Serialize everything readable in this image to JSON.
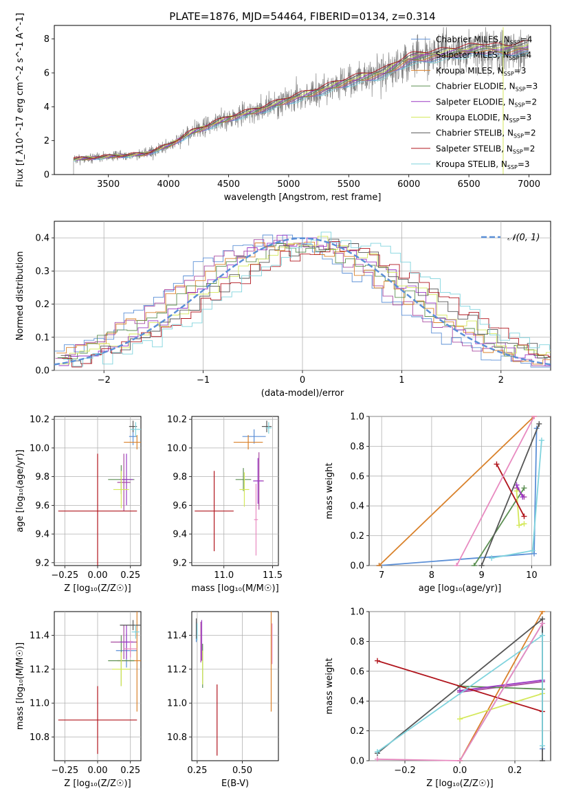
{
  "colors": {
    "chabrier_miles": "#5b8fd6",
    "salpeter_miles": "#a84aa0",
    "kroupa_miles": "#d9812a",
    "chabrier_elodie": "#5c8f52",
    "salpeter_elodie": "#9a38c4",
    "kroupa_elodie": "#d4e85a",
    "chabrier_stelib": "#555555",
    "salpeter_stelib": "#b0141c",
    "kroupa_stelib": "#7fd3dd",
    "normal": "#5b8fd6",
    "data": "#808080",
    "pink": "#e88ac0"
  },
  "chart_data": [
    {
      "id": "spectrum",
      "type": "line",
      "title": "PLATE=1876, MJD=54464, FIBERID=0134, z=0.314",
      "xlabel": "wavelength [Angstrom, rest frame]",
      "ylabel": "Flux [f_λ10^-17 erg cm^-2 s^-1 A^-1]",
      "xlim": [
        3050,
        7180
      ],
      "ylim": [
        0,
        8.8
      ],
      "xticks": [
        3500,
        4000,
        4500,
        5000,
        5500,
        6000,
        6500,
        7000
      ],
      "yticks": [
        0,
        2,
        4,
        6,
        8
      ],
      "grid": false,
      "legend": {
        "position": "top-right",
        "entries": [
          {
            "label": "Chabrier MILES, N_SSP=4",
            "text": "Chabrier MILES, N",
            "sub": "SSP",
            "tail": "=4",
            "color_key": "chabrier_miles"
          },
          {
            "label": "Salpeter MILES, N_SSP=4",
            "text": "Salpeter MILES, N",
            "sub": "SSP",
            "tail": "=4",
            "color_key": "salpeter_miles"
          },
          {
            "label": "Kroupa MILES, N_SSP=3",
            "text": "Kroupa MILES, N",
            "sub": "SSP",
            "tail": "=3",
            "color_key": "kroupa_miles"
          },
          {
            "label": "Chabrier ELODIE, N_SSP=3",
            "text": "Chabrier ELODIE, N",
            "sub": "SSP",
            "tail": "=3",
            "color_key": "chabrier_elodie"
          },
          {
            "label": "Salpeter ELODIE, N_SSP=2",
            "text": "Salpeter ELODIE, N",
            "sub": "SSP",
            "tail": "=2",
            "color_key": "salpeter_elodie"
          },
          {
            "label": "Kroupa ELODIE, N_SSP=3",
            "text": "Kroupa ELODIE, N",
            "sub": "SSP",
            "tail": "=3",
            "color_key": "kroupa_elodie"
          },
          {
            "label": "Chabrier STELIB, N_SSP=2",
            "text": "Chabrier STELIB, N",
            "sub": "SSP",
            "tail": "=2",
            "color_key": "chabrier_stelib"
          },
          {
            "label": "Salpeter STELIB, N_SSP=2",
            "text": "Salpeter STELIB, N",
            "sub": "SSP",
            "tail": "=2",
            "color_key": "salpeter_stelib"
          },
          {
            "label": "Kroupa STELIB, N_SSP=3",
            "text": "Kroupa STELIB, N",
            "sub": "SSP",
            "tail": "=3",
            "color_key": "kroupa_stelib"
          }
        ]
      },
      "continuum": {
        "x": [
          3210,
          3400,
          3600,
          3800,
          4000,
          4200,
          4500,
          4800,
          5000,
          5200,
          5500,
          5800,
          6000,
          6300,
          6600,
          6800,
          7000
        ],
        "y": [
          0.9,
          1.0,
          1.1,
          1.2,
          1.7,
          2.5,
          3.3,
          3.9,
          4.4,
          4.8,
          5.5,
          6.0,
          6.8,
          7.1,
          7.4,
          7.3,
          7.5
        ]
      },
      "data_range": [
        3210,
        7000
      ]
    },
    {
      "id": "residuals",
      "type": "histogram",
      "xlabel": "(data-model)/error",
      "ylabel": "Normed distribution",
      "xlim": [
        -2.5,
        2.5
      ],
      "ylim": [
        0,
        0.45
      ],
      "xticks": [
        -2,
        -1,
        0,
        1,
        2
      ],
      "yticks": [
        0.0,
        0.1,
        0.2,
        0.3,
        0.4
      ],
      "grid": true,
      "legend": {
        "position": "top-right",
        "label": "N(0,1)",
        "text": "𝒩(0, 1)"
      },
      "bin_width": 0.1,
      "series_keys": [
        "chabrier_miles",
        "salpeter_miles",
        "kroupa_miles",
        "chabrier_elodie",
        "salpeter_elodie",
        "kroupa_elodie",
        "chabrier_stelib",
        "salpeter_stelib",
        "kroupa_stelib"
      ]
    },
    {
      "id": "z_age",
      "type": "errorbar",
      "xlabel": "Z [log10(Z/Z☉)]",
      "ylabel": "age [log10(age/yr)]",
      "xlim": [
        -0.33,
        0.33
      ],
      "ylim": [
        9.18,
        10.22
      ],
      "xticks": [
        -0.25,
        0.0,
        0.25
      ],
      "yticks": [
        9.2,
        9.4,
        9.6,
        9.8,
        10.0,
        10.2
      ],
      "points": [
        {
          "key": "chabrier_miles",
          "x": 0.27,
          "y": 10.08,
          "xerr": 0.03,
          "yerr": 0.06
        },
        {
          "key": "salpeter_miles",
          "x": 0.2,
          "y": 9.76,
          "xerr": 0.05,
          "yerr": 0.2
        },
        {
          "key": "kroupa_miles",
          "x": 0.3,
          "y": 10.04,
          "xerr": 0.1,
          "yerr": 0.05
        },
        {
          "key": "chabrier_elodie",
          "x": 0.18,
          "y": 9.78,
          "xerr": 0.1,
          "yerr": 0.1
        },
        {
          "key": "salpeter_elodie",
          "x": 0.22,
          "y": 9.78,
          "xerr": 0.05,
          "yerr": 0.18
        },
        {
          "key": "kroupa_elodie",
          "x": 0.18,
          "y": 9.71,
          "xerr": 0.06,
          "yerr": 0.13
        },
        {
          "key": "chabrier_stelib",
          "x": 0.27,
          "y": 10.15,
          "xerr": 0.03,
          "yerr": 0.04
        },
        {
          "key": "salpeter_stelib",
          "x": 0.0,
          "y": 9.56,
          "xerr": 0.3,
          "yerr": 0.4
        },
        {
          "key": "kroupa_stelib",
          "x": 0.29,
          "y": 10.13,
          "xerr": 0.04,
          "yerr": 0.05
        }
      ]
    },
    {
      "id": "mass_age",
      "type": "errorbar",
      "xlabel": "mass [log10(M/M☉)]",
      "ylabel": "",
      "xlim": [
        10.67,
        11.56
      ],
      "ylim": [
        9.18,
        10.22
      ],
      "xticks": [
        11.0,
        11.5
      ],
      "yticks": [
        9.2,
        9.4,
        9.6,
        9.8,
        10.0,
        10.2
      ],
      "points": [
        {
          "key": "chabrier_miles",
          "x": 11.31,
          "y": 10.08,
          "xerr": 0.12,
          "yerr": 0.05
        },
        {
          "key": "salpeter_miles",
          "x": 11.36,
          "y": 9.77,
          "xerr": 0.05,
          "yerr": 0.2
        },
        {
          "key": "kroupa_miles",
          "x": 11.25,
          "y": 10.04,
          "xerr": 0.15,
          "yerr": 0.05
        },
        {
          "key": "chabrier_elodie",
          "x": 11.2,
          "y": 9.78,
          "xerr": 0.08,
          "yerr": 0.08
        },
        {
          "key": "salpeter_elodie",
          "x": 11.35,
          "y": 9.77,
          "xerr": 0.05,
          "yerr": 0.16
        },
        {
          "key": "kroupa_elodie",
          "x": 11.21,
          "y": 9.71,
          "xerr": 0.05,
          "yerr": 0.12
        },
        {
          "key": "chabrier_stelib",
          "x": 11.44,
          "y": 10.15,
          "xerr": 0.05,
          "yerr": 0.04
        },
        {
          "key": "salpeter_stelib",
          "x": 10.9,
          "y": 9.56,
          "xerr": 0.2,
          "yerr": 0.28
        },
        {
          "key": "kroupa_stelib",
          "x": 11.46,
          "y": 10.14,
          "xerr": 0.03,
          "yerr": 0.04
        },
        {
          "key": "pink",
          "x": 11.33,
          "y": 9.5,
          "xerr": 0.02,
          "yerr": 0.25
        }
      ]
    },
    {
      "id": "age_weight",
      "type": "line",
      "xlabel": "age [log10(age/yr)]",
      "ylabel": "mass weight",
      "xlim": [
        6.75,
        10.38
      ],
      "ylim": [
        0,
        1
      ],
      "xticks": [
        7,
        8,
        9,
        10
      ],
      "yticks": [
        0.0,
        0.2,
        0.4,
        0.6,
        0.8,
        1.0
      ],
      "grid": true,
      "series": [
        {
          "key": "chabrier_miles",
          "x": [
            6.95,
            10.05,
            10.1
          ],
          "y": [
            0.0,
            0.08,
            0.92
          ]
        },
        {
          "key": "salpeter_miles",
          "x": [
            9.7,
            9.85
          ],
          "y": [
            0.52,
            0.46
          ]
        },
        {
          "key": "kroupa_miles",
          "x": [
            6.95,
            10.05
          ],
          "y": [
            0.0,
            1.0
          ]
        },
        {
          "key": "chabrier_elodie",
          "x": [
            8.85,
            9.85
          ],
          "y": [
            0.0,
            0.52
          ]
        },
        {
          "key": "salpeter_elodie",
          "x": [
            9.7,
            9.82
          ],
          "y": [
            0.54,
            0.46
          ]
        },
        {
          "key": "kroupa_elodie",
          "x": [
            9.7,
            9.75,
            9.85
          ],
          "y": [
            0.5,
            0.27,
            0.28
          ]
        },
        {
          "key": "chabrier_stelib",
          "x": [
            9.0,
            10.15
          ],
          "y": [
            0.0,
            0.95
          ]
        },
        {
          "key": "salpeter_stelib",
          "x": [
            9.3,
            9.85
          ],
          "y": [
            0.68,
            0.33
          ]
        },
        {
          "key": "kroupa_stelib",
          "x": [
            9.2,
            10.02,
            10.2
          ],
          "y": [
            0.05,
            0.1,
            0.84
          ]
        },
        {
          "key": "pink",
          "x": [
            8.5,
            10.05
          ],
          "y": [
            0.0,
            1.0
          ]
        }
      ]
    },
    {
      "id": "z_mass",
      "type": "errorbar",
      "xlabel": "Z [log10(Z/Z☉)]",
      "ylabel": "mass [log10(M/M☉)]",
      "xlim": [
        -0.33,
        0.33
      ],
      "ylim": [
        10.66,
        11.54
      ],
      "xticks": [
        -0.25,
        0.0,
        0.25
      ],
      "yticks": [
        10.8,
        11.0,
        11.2,
        11.4
      ],
      "points": [
        {
          "key": "chabrier_miles",
          "x": 0.22,
          "y": 11.31,
          "xerr": 0.08,
          "yerr": 0.1
        },
        {
          "key": "salpeter_miles",
          "x": 0.2,
          "y": 11.36,
          "xerr": 0.1,
          "yerr": 0.1
        },
        {
          "key": "kroupa_miles",
          "x": 0.3,
          "y": 11.25,
          "xerr": 0.15,
          "yerr": 0.3
        },
        {
          "key": "chabrier_elodie",
          "x": 0.18,
          "y": 11.25,
          "xerr": 0.1,
          "yerr": 0.15
        },
        {
          "key": "salpeter_elodie",
          "x": 0.22,
          "y": 11.36,
          "xerr": 0.05,
          "yerr": 0.1
        },
        {
          "key": "kroupa_elodie",
          "x": 0.18,
          "y": 11.2,
          "xerr": 0.07,
          "yerr": 0.1
        },
        {
          "key": "chabrier_stelib",
          "x": 0.27,
          "y": 11.46,
          "xerr": 0.1,
          "yerr": 0.03
        },
        {
          "key": "salpeter_stelib",
          "x": 0.0,
          "y": 10.9,
          "xerr": 0.3,
          "yerr": 0.2
        },
        {
          "key": "kroupa_stelib",
          "x": 0.29,
          "y": 11.42,
          "xerr": 0.03,
          "yerr": 0.04
        },
        {
          "key": "pink",
          "x": 0.25,
          "y": 11.32,
          "xerr": 0.05,
          "yerr": 0.05
        }
      ]
    },
    {
      "id": "ebv_mass",
      "type": "errorbar",
      "xlabel": "E(B-V)",
      "ylabel": "",
      "xlim": [
        0.22,
        0.7
      ],
      "ylim": [
        10.66,
        11.54
      ],
      "xticks": [
        0.25,
        0.5
      ],
      "yticks": [
        10.8,
        11.0,
        11.2,
        11.4
      ],
      "points": [
        {
          "key": "chabrier_miles",
          "x": 0.245,
          "y": 11.42,
          "xerr": 0.0,
          "yerr": 0.06
        },
        {
          "key": "salpeter_miles",
          "x": 0.27,
          "y": 11.36,
          "xerr": 0.0,
          "yerr": 0.12
        },
        {
          "key": "kroupa_miles",
          "x": 0.66,
          "y": 11.25,
          "xerr": 0.0,
          "yerr": 0.3
        },
        {
          "key": "chabrier_elodie",
          "x": 0.28,
          "y": 11.22,
          "xerr": 0.0,
          "yerr": 0.13
        },
        {
          "key": "salpeter_elodie",
          "x": 0.275,
          "y": 11.37,
          "xerr": 0.0,
          "yerr": 0.12
        },
        {
          "key": "kroupa_elodie",
          "x": 0.28,
          "y": 11.21,
          "xerr": 0.0,
          "yerr": 0.1
        },
        {
          "key": "chabrier_stelib",
          "x": 0.245,
          "y": 11.44,
          "xerr": 0.0,
          "yerr": 0.06
        },
        {
          "key": "salpeter_stelib",
          "x": 0.36,
          "y": 10.9,
          "xerr": 0.0,
          "yerr": 0.21
        },
        {
          "key": "kroupa_stelib",
          "x": 0.25,
          "y": 11.42,
          "xerr": 0.0,
          "yerr": 0.05
        },
        {
          "key": "pink",
          "x": 0.665,
          "y": 11.35,
          "xerr": 0.0,
          "yerr": 0.12
        }
      ]
    },
    {
      "id": "z_weight",
      "type": "line",
      "xlabel": "Z [log10(Z/Z☉)]",
      "ylabel": "mass weight",
      "xlim": [
        -0.33,
        0.33
      ],
      "ylim": [
        0,
        1
      ],
      "xticks": [
        -0.2,
        0.0,
        0.2
      ],
      "yticks": [
        0.0,
        0.2,
        0.4,
        0.6,
        0.8,
        1.0
      ],
      "grid": true,
      "series": [
        {
          "key": "chabrier_miles",
          "x": [
            0.0,
            0.3,
            0.3
          ],
          "y": [
            0.0,
            0.92,
            0.08
          ]
        },
        {
          "key": "salpeter_miles",
          "x": [
            0.0,
            0.3
          ],
          "y": [
            0.46,
            0.53
          ]
        },
        {
          "key": "kroupa_miles",
          "x": [
            0.0,
            0.3
          ],
          "y": [
            0.0,
            1.0
          ]
        },
        {
          "key": "chabrier_elodie",
          "x": [
            0.0,
            0.3
          ],
          "y": [
            0.5,
            0.48
          ]
        },
        {
          "key": "salpeter_elodie",
          "x": [
            0.0,
            0.3
          ],
          "y": [
            0.47,
            0.54
          ]
        },
        {
          "key": "kroupa_elodie",
          "x": [
            0.0,
            0.3
          ],
          "y": [
            0.28,
            0.45
          ]
        },
        {
          "key": "chabrier_stelib",
          "x": [
            -0.3,
            0.3,
            0.3
          ],
          "y": [
            0.05,
            0.95,
            0.0
          ]
        },
        {
          "key": "salpeter_stelib",
          "x": [
            -0.3,
            0.3
          ],
          "y": [
            0.67,
            0.33
          ]
        },
        {
          "key": "kroupa_stelib",
          "x": [
            -0.3,
            0.3,
            0.3
          ],
          "y": [
            0.06,
            0.84,
            0.1
          ]
        },
        {
          "key": "pink",
          "x": [
            -0.3,
            0.0,
            0.3
          ],
          "y": [
            0.01,
            0.0,
            0.92
          ]
        }
      ]
    }
  ]
}
